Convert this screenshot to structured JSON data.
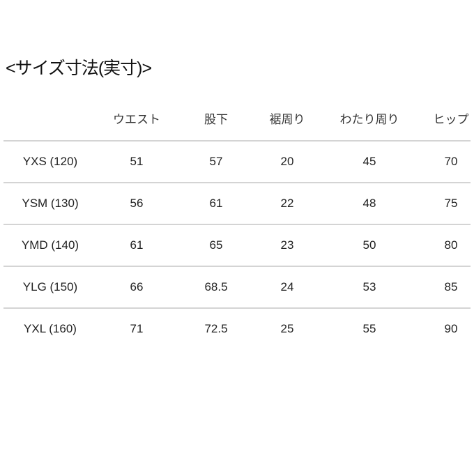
{
  "title": "<サイズ寸法(実寸)>",
  "table": {
    "headers": [
      "",
      "ウエスト",
      "股下",
      "裾周り",
      "わたり周り",
      "ヒップ"
    ],
    "rows": [
      [
        "YXS (120)",
        "51",
        "57",
        "20",
        "45",
        "70"
      ],
      [
        "YSM (130)",
        "56",
        "61",
        "22",
        "48",
        "75"
      ],
      [
        "YMD (140)",
        "61",
        "65",
        "23",
        "50",
        "80"
      ],
      [
        "YLG (150)",
        "66",
        "68.5",
        "24",
        "53",
        "85"
      ],
      [
        "YXL (160)",
        "71",
        "72.5",
        "25",
        "55",
        "90"
      ]
    ]
  }
}
